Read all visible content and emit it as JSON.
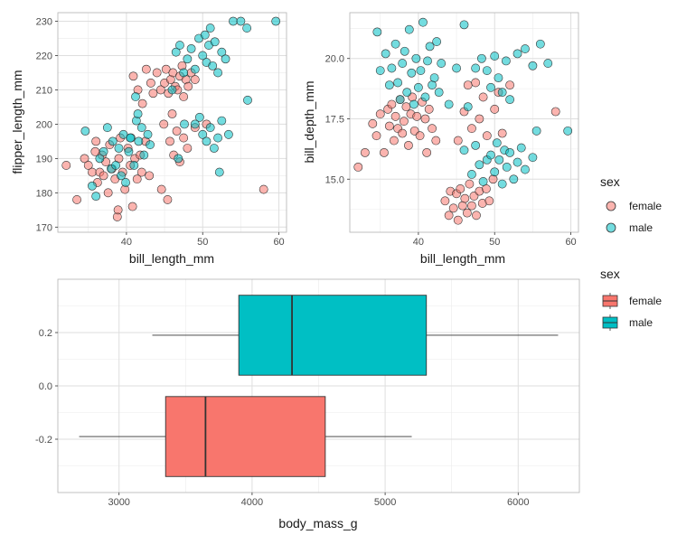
{
  "colors": {
    "female": "#F8766D",
    "male": "#00BFC4",
    "grid": "#ebebeb",
    "panel_border": "#b3b3b3",
    "whisker": "#333333"
  },
  "legend_top": {
    "title": "sex",
    "entries": [
      {
        "name": "female",
        "color": "#F8766D"
      },
      {
        "name": "male",
        "color": "#00BFC4"
      }
    ]
  },
  "legend_bottom": {
    "title": "sex",
    "entries": [
      {
        "name": "female",
        "color": "#F8766D"
      },
      {
        "name": "male",
        "color": "#00BFC4"
      }
    ]
  },
  "chart_data": [
    {
      "type": "scatter",
      "xlabel": "bill_length_mm",
      "ylabel": "flipper_length_mm",
      "xlim": [
        31,
        61
      ],
      "ylim": [
        168.5,
        232.5
      ],
      "xticks": [
        "40",
        "50",
        "60"
      ],
      "yticks": [
        "170",
        "180",
        "190",
        "200",
        "210",
        "220",
        "230"
      ],
      "series": [
        {
          "name": "female",
          "color": "#F8766D",
          "points": [
            [
              32.1,
              188
            ],
            [
              33.5,
              178
            ],
            [
              34.5,
              190
            ],
            [
              35.0,
              188
            ],
            [
              35.5,
              186
            ],
            [
              35.9,
              192
            ],
            [
              36.0,
              195
            ],
            [
              36.2,
              183
            ],
            [
              36.5,
              186
            ],
            [
              36.8,
              191
            ],
            [
              37.0,
              185
            ],
            [
              37.3,
              189
            ],
            [
              37.6,
              180
            ],
            [
              37.8,
              194
            ],
            [
              38.1,
              187
            ],
            [
              38.5,
              184
            ],
            [
              38.8,
              173
            ],
            [
              38.9,
              175
            ],
            [
              39.0,
              190
            ],
            [
              39.2,
              196
            ],
            [
              39.5,
              186
            ],
            [
              39.8,
              181
            ],
            [
              40.2,
              193
            ],
            [
              40.5,
              188
            ],
            [
              40.8,
              176
            ],
            [
              41.1,
              190
            ],
            [
              41.4,
              184
            ],
            [
              41.8,
              191
            ],
            [
              42.0,
              186
            ],
            [
              42.5,
              195
            ],
            [
              40.9,
              214
            ],
            [
              41.5,
              210
            ],
            [
              42.1,
              206
            ],
            [
              42.6,
              216
            ],
            [
              43.2,
              212
            ],
            [
              43.5,
              209
            ],
            [
              44.0,
              215
            ],
            [
              44.5,
              210
            ],
            [
              45.0,
              212
            ],
            [
              45.2,
              216
            ],
            [
              45.5,
              209
            ],
            [
              45.8,
              213
            ],
            [
              46.1,
              215
            ],
            [
              46.4,
              211
            ],
            [
              46.7,
              210
            ],
            [
              47.0,
              214
            ],
            [
              47.3,
              217
            ],
            [
              47.5,
              208
            ],
            [
              47.8,
              213
            ],
            [
              48.1,
              211
            ],
            [
              48.5,
              215
            ],
            [
              49.0,
              213
            ],
            [
              45.7,
              195
            ],
            [
              46.2,
              191
            ],
            [
              46.6,
              198
            ],
            [
              47.0,
              189
            ],
            [
              47.5,
              196
            ],
            [
              48.0,
              193
            ],
            [
              49.0,
              199
            ],
            [
              50.5,
              200
            ],
            [
              43.0,
              185
            ],
            [
              44.6,
              181
            ],
            [
              45.4,
              178
            ],
            [
              58.0,
              181
            ],
            [
              46.0,
              203
            ],
            [
              44.9,
              200
            ]
          ]
        },
        {
          "name": "male",
          "color": "#00BFC4",
          "points": [
            [
              34.6,
              198
            ],
            [
              35.5,
              182
            ],
            [
              36.0,
              179
            ],
            [
              36.5,
              190
            ],
            [
              37.0,
              192
            ],
            [
              37.5,
              199
            ],
            [
              38.0,
              187
            ],
            [
              38.2,
              195
            ],
            [
              38.6,
              188
            ],
            [
              39.0,
              193
            ],
            [
              39.3,
              185
            ],
            [
              39.6,
              197
            ],
            [
              39.9,
              183
            ],
            [
              40.3,
              192
            ],
            [
              40.6,
              196
            ],
            [
              41.0,
              188
            ],
            [
              41.3,
              201
            ],
            [
              41.6,
              195
            ],
            [
              42.0,
              199
            ],
            [
              42.3,
              191
            ],
            [
              42.8,
              197
            ],
            [
              43.1,
              194
            ],
            [
              41.2,
              208
            ],
            [
              41.5,
              203
            ],
            [
              40.5,
              196
            ],
            [
              46.0,
              210
            ],
            [
              46.5,
              221
            ],
            [
              47.0,
              223
            ],
            [
              47.5,
              215
            ],
            [
              48.0,
              219
            ],
            [
              48.5,
              222
            ],
            [
              49.0,
              216
            ],
            [
              49.5,
              225
            ],
            [
              50.0,
              220
            ],
            [
              50.3,
              226
            ],
            [
              50.5,
              218
            ],
            [
              50.8,
              223
            ],
            [
              51.0,
              228
            ],
            [
              51.3,
              217
            ],
            [
              51.6,
              224
            ],
            [
              52.0,
              215
            ],
            [
              52.5,
              221
            ],
            [
              53.0,
              219
            ],
            [
              54.0,
              230
            ],
            [
              55.0,
              230
            ],
            [
              55.8,
              228
            ],
            [
              59.6,
              230
            ],
            [
              49.0,
              200
            ],
            [
              49.6,
              202
            ],
            [
              50.0,
              197
            ],
            [
              50.5,
              195
            ],
            [
              51.0,
              199
            ],
            [
              51.5,
              193
            ],
            [
              52.0,
              196
            ],
            [
              52.5,
              201
            ],
            [
              53.4,
              197
            ],
            [
              55.9,
              207
            ],
            [
              46.8,
              190
            ],
            [
              47.6,
              200
            ],
            [
              52.2,
              186
            ]
          ]
        }
      ]
    },
    {
      "type": "scatter",
      "xlabel": "bill_length_mm",
      "ylabel": "bill_depth_mm",
      "xlim": [
        31,
        61
      ],
      "ylim": [
        12.8,
        21.9
      ],
      "xticks": [
        "40",
        "50",
        "60"
      ],
      "yticks": [
        "15.0",
        "17.5",
        "20.0"
      ],
      "series": [
        {
          "name": "female",
          "color": "#F8766D",
          "points": [
            [
              32.1,
              15.5
            ],
            [
              33.0,
              16.1
            ],
            [
              34.0,
              17.3
            ],
            [
              34.5,
              16.8
            ],
            [
              35.0,
              17.7
            ],
            [
              35.5,
              16.1
            ],
            [
              36.0,
              17.9
            ],
            [
              36.2,
              17.2
            ],
            [
              36.5,
              18.1
            ],
            [
              36.8,
              16.6
            ],
            [
              37.0,
              17.6
            ],
            [
              37.3,
              17.1
            ],
            [
              37.6,
              18.3
            ],
            [
              37.9,
              16.9
            ],
            [
              38.1,
              17.4
            ],
            [
              38.4,
              18.0
            ],
            [
              38.7,
              16.4
            ],
            [
              39.0,
              17.7
            ],
            [
              39.2,
              18.4
            ],
            [
              39.5,
              17.0
            ],
            [
              39.8,
              17.6
            ],
            [
              40.2,
              16.8
            ],
            [
              40.5,
              18.2
            ],
            [
              40.9,
              17.5
            ],
            [
              41.1,
              16.1
            ],
            [
              41.4,
              17.9
            ],
            [
              41.8,
              17.1
            ],
            [
              42.3,
              16.6
            ],
            [
              43.5,
              14.1
            ],
            [
              44.0,
              13.5
            ],
            [
              44.2,
              14.5
            ],
            [
              44.6,
              13.8
            ],
            [
              45.0,
              14.4
            ],
            [
              45.2,
              13.3
            ],
            [
              45.5,
              14.6
            ],
            [
              45.8,
              13.9
            ],
            [
              46.1,
              14.2
            ],
            [
              46.4,
              13.6
            ],
            [
              46.7,
              14.8
            ],
            [
              47.0,
              13.9
            ],
            [
              47.3,
              14.3
            ],
            [
              47.6,
              13.5
            ],
            [
              48.0,
              14.5
            ],
            [
              48.4,
              14.0
            ],
            [
              48.9,
              14.6
            ],
            [
              49.3,
              14.1
            ],
            [
              49.8,
              15.0
            ],
            [
              46.0,
              17.8
            ],
            [
              46.5,
              18.9
            ],
            [
              47.0,
              17.1
            ],
            [
              47.5,
              19.0
            ],
            [
              48.0,
              17.5
            ],
            [
              48.5,
              18.4
            ],
            [
              49.0,
              16.8
            ],
            [
              50.0,
              17.9
            ],
            [
              50.5,
              18.6
            ],
            [
              51.0,
              16.9
            ],
            [
              52.0,
              18.9
            ],
            [
              58.0,
              17.8
            ],
            [
              45.2,
              16.6
            ]
          ]
        },
        {
          "name": "male",
          "color": "#00BFC4",
          "points": [
            [
              34.6,
              21.1
            ],
            [
              35.0,
              19.5
            ],
            [
              35.7,
              20.2
            ],
            [
              36.2,
              18.9
            ],
            [
              36.5,
              19.6
            ],
            [
              37.0,
              20.6
            ],
            [
              37.3,
              19.0
            ],
            [
              37.6,
              18.3
            ],
            [
              37.9,
              19.8
            ],
            [
              38.2,
              20.3
            ],
            [
              38.5,
              18.6
            ],
            [
              38.8,
              21.2
            ],
            [
              39.1,
              19.4
            ],
            [
              39.4,
              18.1
            ],
            [
              39.7,
              20.0
            ],
            [
              40.0,
              18.8
            ],
            [
              40.3,
              19.5
            ],
            [
              40.6,
              21.5
            ],
            [
              40.9,
              18.4
            ],
            [
              41.2,
              19.9
            ],
            [
              41.5,
              20.5
            ],
            [
              41.8,
              18.9
            ],
            [
              42.1,
              19.2
            ],
            [
              42.4,
              20.7
            ],
            [
              42.7,
              18.6
            ],
            [
              43.0,
              19.8
            ],
            [
              44.0,
              18.1
            ],
            [
              45.0,
              19.6
            ],
            [
              46.0,
              21.4
            ],
            [
              46.5,
              18.0
            ],
            [
              46.0,
              16.2
            ],
            [
              47.0,
              15.2
            ],
            [
              47.5,
              16.4
            ],
            [
              48.0,
              15.6
            ],
            [
              48.5,
              14.9
            ],
            [
              49.0,
              15.8
            ],
            [
              49.5,
              16.0
            ],
            [
              50.0,
              15.3
            ],
            [
              50.3,
              16.5
            ],
            [
              50.6,
              15.8
            ],
            [
              51.0,
              14.8
            ],
            [
              51.3,
              16.2
            ],
            [
              51.6,
              15.5
            ],
            [
              52.0,
              16.1
            ],
            [
              52.5,
              15.0
            ],
            [
              53.0,
              15.7
            ],
            [
              53.5,
              16.3
            ],
            [
              54.0,
              15.4
            ],
            [
              55.0,
              15.9
            ],
            [
              55.5,
              17.0
            ],
            [
              59.6,
              17.0
            ],
            [
              49.0,
              19.5
            ],
            [
              49.5,
              18.8
            ],
            [
              50.0,
              20.1
            ],
            [
              50.5,
              19.2
            ],
            [
              51.0,
              18.6
            ],
            [
              51.5,
              19.9
            ],
            [
              52.0,
              18.3
            ],
            [
              53.0,
              20.2
            ],
            [
              54.0,
              20.4
            ],
            [
              55.0,
              19.7
            ],
            [
              56.0,
              20.6
            ],
            [
              57.0,
              19.8
            ],
            [
              47.5,
              19.6
            ],
            [
              48.3,
              20.0
            ]
          ]
        }
      ]
    },
    {
      "type": "boxplot",
      "xlabel": "body_mass_g",
      "ylabel": "",
      "xlim": [
        2540,
        6460
      ],
      "ylim": [
        -0.4,
        0.4
      ],
      "xticks": [
        "3000",
        "4000",
        "5000",
        "6000"
      ],
      "yticks": [
        "-0.2",
        "0.0",
        "0.2"
      ],
      "boxes": [
        {
          "name": "male",
          "color": "#00BFC4",
          "y_center": 0.19,
          "min": 3250,
          "q1": 3900,
          "median": 4300,
          "q3": 5310,
          "max": 6300
        },
        {
          "name": "female",
          "color": "#F8766D",
          "y_center": -0.19,
          "min": 2700,
          "q1": 3350,
          "median": 3650,
          "q3": 4550,
          "max": 5200
        }
      ]
    }
  ]
}
